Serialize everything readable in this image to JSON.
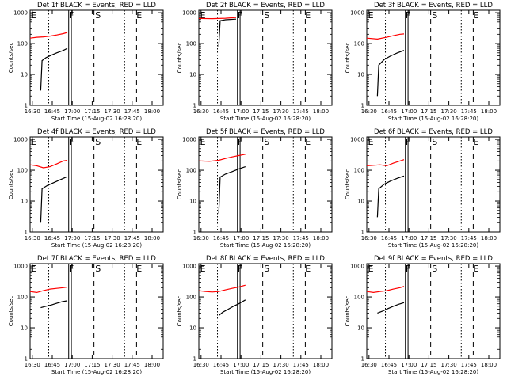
{
  "figure": {
    "xlabel": "Start Time (15-Aug-02 16:28:20)",
    "ylabel": "Counts/sec",
    "x_ticks": [
      "16:30",
      "16:45",
      "17:00",
      "17:15",
      "17:30",
      "17:45",
      "18:00"
    ],
    "y_ticks": [
      "1",
      "10",
      "100",
      "1000"
    ],
    "markers": [
      "E",
      "F",
      "S",
      "E"
    ],
    "colors": {
      "events": "#000000",
      "lld": "#ff0000",
      "axes": "#000000"
    }
  },
  "chart_data": [
    {
      "type": "line",
      "title": "Det 1f BLACK = Events, RED = LLD",
      "yscale": "log",
      "ylim": [
        1,
        1200
      ],
      "xlim_minutes": [
        0,
        100
      ],
      "series": [
        {
          "color": "#ff0000",
          "x": [
            0,
            5,
            10,
            15,
            20,
            25,
            28
          ],
          "values": [
            150,
            160,
            165,
            175,
            190,
            210,
            230
          ]
        },
        {
          "color": "#000000",
          "x": [
            8,
            9,
            12,
            16,
            20,
            25,
            28
          ],
          "values": [
            3,
            28,
            35,
            42,
            50,
            60,
            70
          ]
        }
      ]
    },
    {
      "type": "line",
      "title": "Det 2f BLACK = Events, RED = LLD",
      "yscale": "log",
      "ylim": [
        1,
        1200
      ],
      "xlim_minutes": [
        0,
        100
      ],
      "series": [
        {
          "color": "#ff0000",
          "x": [
            0,
            10,
            20,
            28
          ],
          "values": [
            650,
            640,
            660,
            700
          ]
        },
        {
          "color": "#000000",
          "x": [
            15,
            16,
            20,
            28
          ],
          "values": [
            80,
            550,
            590,
            620
          ]
        }
      ]
    },
    {
      "type": "line",
      "title": "Det 3f BLACK = Events, RED = LLD",
      "yscale": "log",
      "ylim": [
        1,
        1200
      ],
      "xlim_minutes": [
        0,
        100
      ],
      "series": [
        {
          "color": "#ff0000",
          "x": [
            0,
            8,
            15,
            20,
            25,
            28
          ],
          "values": [
            150,
            140,
            160,
            180,
            200,
            205
          ]
        },
        {
          "color": "#000000",
          "x": [
            8,
            9,
            13,
            18,
            23,
            28
          ],
          "values": [
            2,
            20,
            30,
            40,
            50,
            60
          ]
        }
      ]
    },
    {
      "type": "line",
      "title": "Det 4f BLACK = Events, RED = LLD",
      "yscale": "log",
      "ylim": [
        1,
        1200
      ],
      "xlim_minutes": [
        0,
        100
      ],
      "series": [
        {
          "color": "#ff0000",
          "x": [
            0,
            5,
            10,
            15,
            20,
            25,
            28
          ],
          "values": [
            150,
            140,
            120,
            130,
            160,
            200,
            210
          ]
        },
        {
          "color": "#000000",
          "x": [
            8,
            9,
            13,
            18,
            23,
            28
          ],
          "values": [
            2,
            25,
            32,
            40,
            50,
            62
          ]
        }
      ]
    },
    {
      "type": "line",
      "title": "Det 5f BLACK = Events, RED = LLD",
      "yscale": "log",
      "ylim": [
        1,
        1200
      ],
      "xlim_minutes": [
        0,
        100
      ],
      "series": [
        {
          "color": "#ff0000",
          "x": [
            0,
            8,
            15,
            20,
            25,
            30,
            35
          ],
          "values": [
            200,
            195,
            210,
            240,
            270,
            300,
            330
          ]
        },
        {
          "color": "#000000",
          "x": [
            15,
            16,
            20,
            25,
            30,
            35
          ],
          "values": [
            4,
            60,
            75,
            90,
            110,
            130
          ]
        }
      ]
    },
    {
      "type": "line",
      "title": "Det 6f BLACK = Events, RED = LLD",
      "yscale": "log",
      "ylim": [
        1,
        1200
      ],
      "xlim_minutes": [
        0,
        100
      ],
      "series": [
        {
          "color": "#ff0000",
          "x": [
            0,
            5,
            10,
            15,
            20,
            25,
            28
          ],
          "values": [
            140,
            145,
            150,
            140,
            170,
            200,
            220
          ]
        },
        {
          "color": "#000000",
          "x": [
            8,
            9,
            13,
            18,
            23,
            28
          ],
          "values": [
            3,
            25,
            35,
            45,
            55,
            65
          ]
        }
      ]
    },
    {
      "type": "line",
      "title": "Det 7f BLACK = Events, RED = LLD",
      "yscale": "log",
      "ylim": [
        1,
        1200
      ],
      "xlim_minutes": [
        0,
        100
      ],
      "series": [
        {
          "color": "#ff0000",
          "x": [
            0,
            5,
            10,
            15,
            20,
            25,
            28
          ],
          "values": [
            150,
            140,
            160,
            180,
            190,
            200,
            210
          ]
        },
        {
          "color": "#000000",
          "x": [
            8,
            12,
            16,
            20,
            24,
            28
          ],
          "values": [
            45,
            50,
            55,
            62,
            70,
            75
          ]
        }
      ]
    },
    {
      "type": "line",
      "title": "Det 8f BLACK = Events, RED = LLD",
      "yscale": "log",
      "ylim": [
        1,
        1200
      ],
      "xlim_minutes": [
        0,
        100
      ],
      "series": [
        {
          "color": "#ff0000",
          "x": [
            0,
            5,
            10,
            15,
            20,
            25,
            30,
            35
          ],
          "values": [
            160,
            150,
            145,
            150,
            170,
            190,
            210,
            240
          ]
        },
        {
          "color": "#000000",
          "x": [
            15,
            18,
            22,
            26,
            30,
            35
          ],
          "values": [
            25,
            32,
            40,
            50,
            60,
            80
          ]
        }
      ]
    },
    {
      "type": "line",
      "title": "Det 9f BLACK = Events, RED = LLD",
      "yscale": "log",
      "ylim": [
        1,
        1200
      ],
      "xlim_minutes": [
        0,
        100
      ],
      "series": [
        {
          "color": "#ff0000",
          "x": [
            0,
            5,
            10,
            15,
            20,
            25,
            28
          ],
          "values": [
            150,
            140,
            150,
            160,
            180,
            200,
            220
          ]
        },
        {
          "color": "#000000",
          "x": [
            8,
            12,
            16,
            20,
            24,
            28
          ],
          "values": [
            30,
            35,
            42,
            50,
            58,
            65
          ]
        }
      ]
    }
  ]
}
